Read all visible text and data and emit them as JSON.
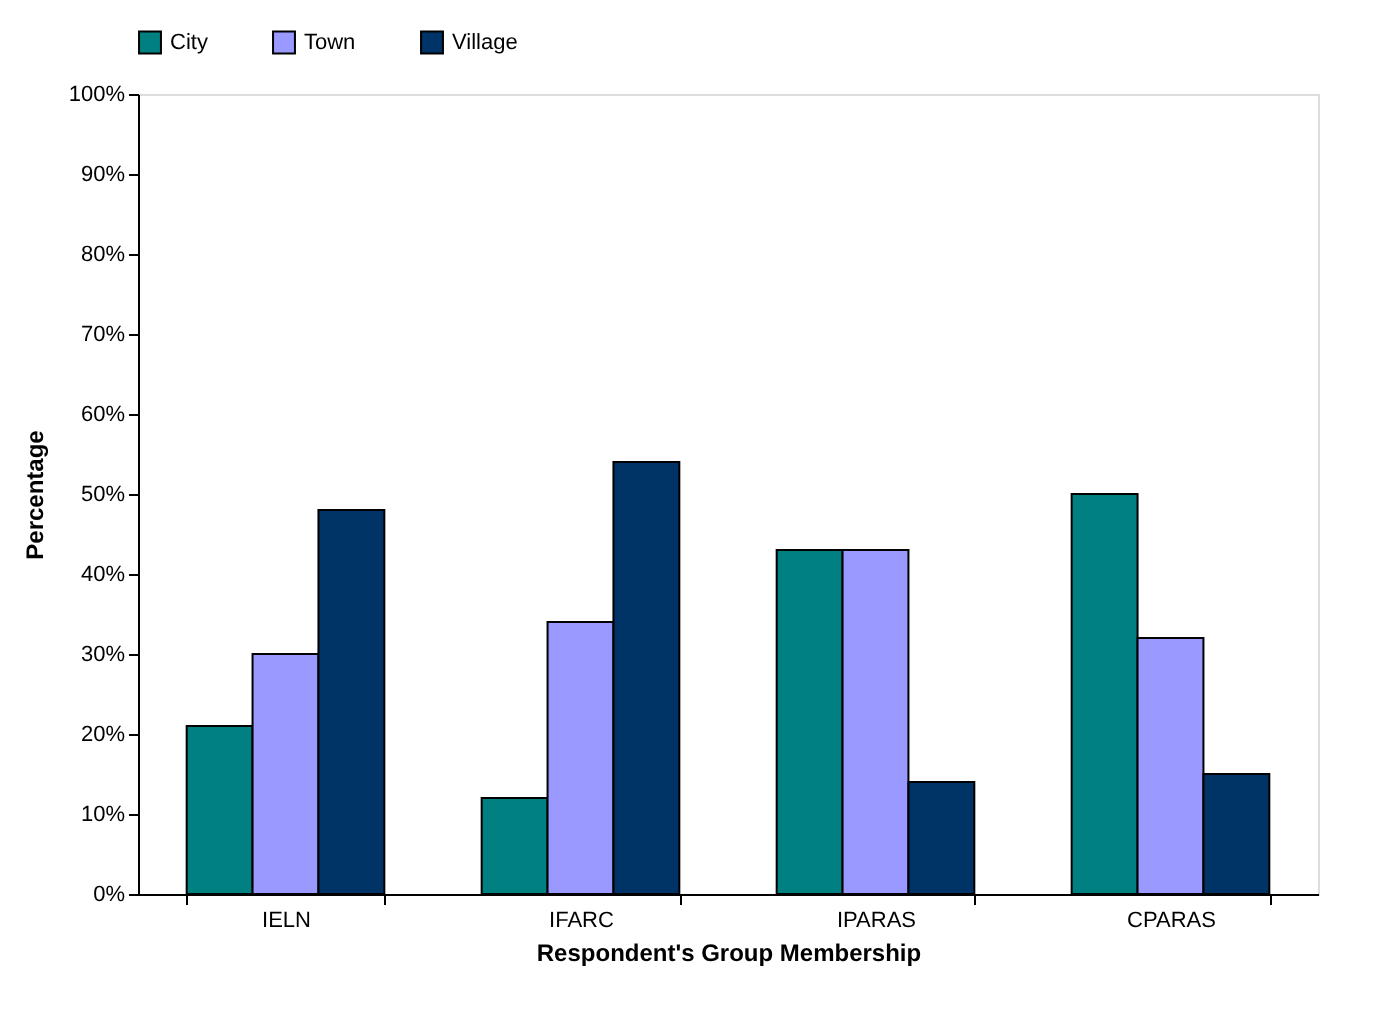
{
  "chart_data": {
    "type": "bar",
    "xlabel": "Respondent's Group Membership",
    "ylabel": "Percentage",
    "categories": [
      "IELN",
      "IFARC",
      "IPARAS",
      "CPARAS"
    ],
    "series": [
      {
        "name": "City",
        "color": "#008080",
        "values": [
          21,
          12,
          43,
          50
        ]
      },
      {
        "name": "Town",
        "color": "#9999ff",
        "values": [
          30,
          34,
          43,
          32
        ]
      },
      {
        "name": "Village",
        "color": "#003366",
        "values": [
          48,
          54,
          14,
          15
        ]
      }
    ],
    "ylim": [
      0,
      100
    ],
    "yticks": [
      {
        "value": 0,
        "label": "0%"
      },
      {
        "value": 10,
        "label": "10%"
      },
      {
        "value": 20,
        "label": "20%"
      },
      {
        "value": 30,
        "label": "30%"
      },
      {
        "value": 40,
        "label": "40%"
      },
      {
        "value": 50,
        "label": "50%"
      },
      {
        "value": 60,
        "label": "60%"
      },
      {
        "value": 70,
        "label": "70%"
      },
      {
        "value": 80,
        "label": "80%"
      },
      {
        "value": 90,
        "label": "90%"
      },
      {
        "value": 100,
        "label": "100%"
      }
    ],
    "grid": false,
    "legend": "top"
  }
}
